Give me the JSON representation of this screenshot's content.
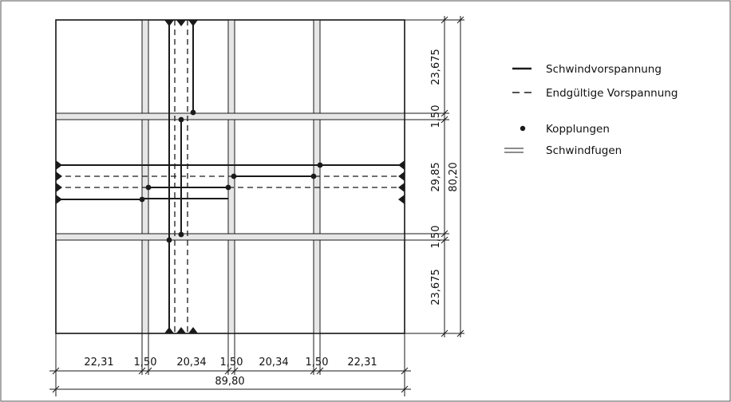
{
  "legend": {
    "items": [
      {
        "symbol": "solid-line",
        "label": "Schwindvorspannung"
      },
      {
        "symbol": "dashed-line",
        "label": "Endgültige Vorspannung"
      },
      {
        "symbol": "dot",
        "label": "Kopplungen"
      },
      {
        "symbol": "double-line",
        "label": "Schwindfugen"
      }
    ]
  },
  "dimensions": {
    "bottom": [
      "22,31",
      "1,50",
      "20,34",
      "1,50",
      "20,34",
      "1,50",
      "22,31"
    ],
    "bottom_total": "89,80",
    "right": [
      "23,675",
      "1,50",
      "29,85",
      "1,50",
      "23,675"
    ],
    "right_total": "80,20"
  },
  "colors": {
    "ink": "#1a1a1a",
    "joint_fill": "#e6e6e6",
    "frame": "#555555"
  }
}
